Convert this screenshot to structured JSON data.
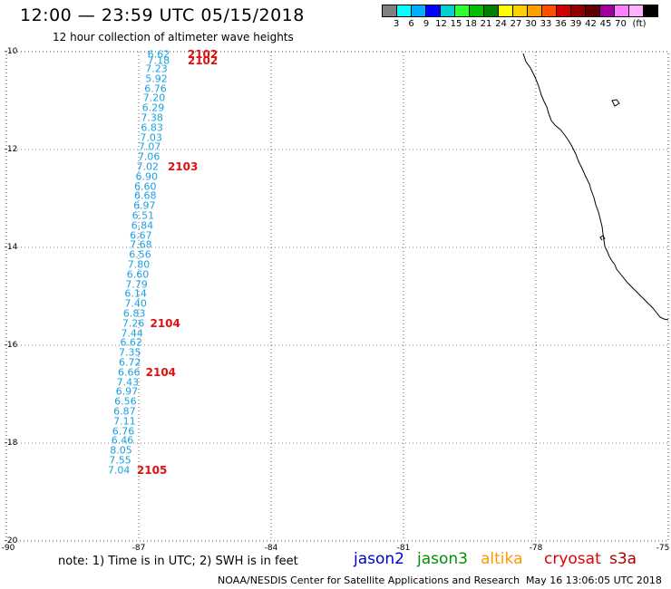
{
  "header": {
    "title": "12:00 — 23:59 UTC 05/15/2018",
    "subtitle": "12 hour collection of altimeter wave heights"
  },
  "colorbar": {
    "swatches": [
      "#808080",
      "#00ffff",
      "#00b0ff",
      "#0000ff",
      "#00d0d0",
      "#30ff30",
      "#00c000",
      "#008000",
      "#ffff00",
      "#ffd000",
      "#ffa000",
      "#ff5000",
      "#d00000",
      "#900000",
      "#600000",
      "#a000a0",
      "#ff80ff",
      "#ffb0ff",
      "#000000"
    ],
    "labels": [
      "3",
      "6",
      "9",
      "12",
      "15",
      "18",
      "21",
      "24",
      "27",
      "30",
      "33",
      "36",
      "39",
      "42",
      "45",
      "70",
      "(ft)"
    ]
  },
  "map": {
    "lat_labels": [
      "-10",
      "-12",
      "-14",
      "-16",
      "-18",
      "-20"
    ],
    "lon_labels": [
      "-90",
      "-87",
      "-84",
      "-81",
      "-78",
      "-75"
    ],
    "swh_values": [
      {
        "lat": -10.05,
        "lon": -86.55,
        "v": "6.62"
      },
      {
        "lat": -10.18,
        "lon": -86.55,
        "v": "7.18"
      },
      {
        "lat": -10.35,
        "lon": -86.6,
        "v": "7.23"
      },
      {
        "lat": -10.55,
        "lon": -86.6,
        "v": "5.92"
      },
      {
        "lat": -10.75,
        "lon": -86.62,
        "v": "6.76"
      },
      {
        "lat": -10.95,
        "lon": -86.65,
        "v": "7.20"
      },
      {
        "lat": -11.15,
        "lon": -86.67,
        "v": "6.29"
      },
      {
        "lat": -11.35,
        "lon": -86.7,
        "v": "7.38"
      },
      {
        "lat": -11.55,
        "lon": -86.7,
        "v": "6.83"
      },
      {
        "lat": -11.75,
        "lon": -86.72,
        "v": "7.03"
      },
      {
        "lat": -11.95,
        "lon": -86.75,
        "v": "7.07"
      },
      {
        "lat": -12.15,
        "lon": -86.77,
        "v": "7.06"
      },
      {
        "lat": -12.35,
        "lon": -86.8,
        "v": "7.02"
      },
      {
        "lat": -12.55,
        "lon": -86.82,
        "v": "6.90"
      },
      {
        "lat": -12.75,
        "lon": -86.85,
        "v": "6.60"
      },
      {
        "lat": -12.95,
        "lon": -86.85,
        "v": "6.68"
      },
      {
        "lat": -13.15,
        "lon": -86.87,
        "v": "6.97"
      },
      {
        "lat": -13.35,
        "lon": -86.9,
        "v": "6.51"
      },
      {
        "lat": -13.55,
        "lon": -86.92,
        "v": "6.84"
      },
      {
        "lat": -13.75,
        "lon": -86.95,
        "v": "6.67"
      },
      {
        "lat": -13.95,
        "lon": -86.95,
        "v": "7.68"
      },
      {
        "lat": -14.15,
        "lon": -86.97,
        "v": "6.56"
      },
      {
        "lat": -14.35,
        "lon": -87.0,
        "v": "7.80"
      },
      {
        "lat": -14.55,
        "lon": -87.02,
        "v": "6.60"
      },
      {
        "lat": -14.75,
        "lon": -87.05,
        "v": "7.79"
      },
      {
        "lat": -14.95,
        "lon": -87.07,
        "v": "6.14"
      },
      {
        "lat": -15.15,
        "lon": -87.07,
        "v": "7.40"
      },
      {
        "lat": -15.35,
        "lon": -87.1,
        "v": "6.83"
      },
      {
        "lat": -15.55,
        "lon": -87.12,
        "v": "7.26"
      },
      {
        "lat": -15.75,
        "lon": -87.15,
        "v": "7.44"
      },
      {
        "lat": -15.95,
        "lon": -87.17,
        "v": "6.62"
      },
      {
        "lat": -16.15,
        "lon": -87.2,
        "v": "7.35"
      },
      {
        "lat": -16.35,
        "lon": -87.2,
        "v": "6.72"
      },
      {
        "lat": -16.55,
        "lon": -87.22,
        "v": "6.66"
      },
      {
        "lat": -16.75,
        "lon": -87.25,
        "v": "7.43"
      },
      {
        "lat": -16.95,
        "lon": -87.27,
        "v": "6.97"
      },
      {
        "lat": -17.15,
        "lon": -87.3,
        "v": "6.56"
      },
      {
        "lat": -17.35,
        "lon": -87.32,
        "v": "6.87"
      },
      {
        "lat": -17.55,
        "lon": -87.32,
        "v": "7.11"
      },
      {
        "lat": -17.75,
        "lon": -87.35,
        "v": "6.76"
      },
      {
        "lat": -17.95,
        "lon": -87.37,
        "v": "6.46"
      },
      {
        "lat": -18.15,
        "lon": -87.4,
        "v": "8.05"
      },
      {
        "lat": -18.35,
        "lon": -87.42,
        "v": "7.55"
      },
      {
        "lat": -18.55,
        "lon": -87.45,
        "v": "7.04"
      }
    ],
    "pass_labels": [
      {
        "lat": -10.05,
        "lon": -85.55,
        "v": "2102"
      },
      {
        "lat": -10.18,
        "lon": -85.55,
        "v": "2102"
      },
      {
        "lat": -12.35,
        "lon": -86.0,
        "v": "2103"
      },
      {
        "lat": -15.55,
        "lon": -86.4,
        "v": "2104"
      },
      {
        "lat": -16.55,
        "lon": -86.5,
        "v": "2104"
      },
      {
        "lat": -18.55,
        "lon": -86.7,
        "v": "2105"
      }
    ]
  },
  "footer": {
    "note": "note: 1) Time is in UTC; 2) SWH is in feet",
    "legend": [
      {
        "label": "jason2",
        "color": "#0000cc"
      },
      {
        "label": "jason3",
        "color": "#009000"
      },
      {
        "label": "altika",
        "color": "#ff9900"
      },
      {
        "label": "cryosat",
        "color": "#dd0000"
      },
      {
        "label": "s3a",
        "color": "#aa0000"
      }
    ],
    "credit": "NOAA/NESDIS Center for Satellite Applications and Research",
    "timestamp": "May 16 13:06:05 UTC 2018"
  }
}
